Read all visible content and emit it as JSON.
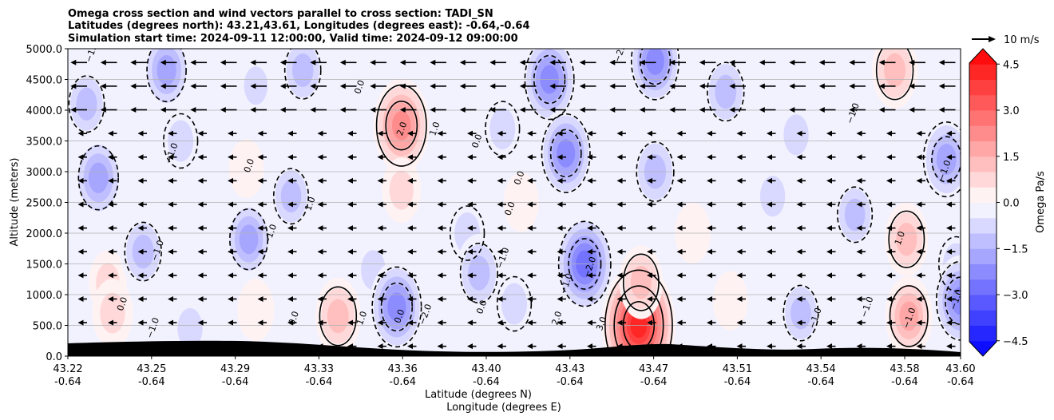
{
  "chart_data": {
    "type": "heatmap",
    "title_lines": [
      "Omega cross section and wind vectors parallel to cross section: TADI_SN",
      "Latitudes (degrees north): 43.21,43.61, Longitudes (degrees east): -0.64,-0.64",
      "Simulation start time: 2024-09-11 12:00:00, Valid time: 2024-09-12 09:00:00"
    ],
    "ylabel": "Altitude (meters)",
    "xlabel_lines": [
      "Latitude (degrees N)",
      "Longitude (degrees E)"
    ],
    "ylim": [
      0,
      5000
    ],
    "y_ticks": [
      "0.0",
      "500.0",
      "1000.0",
      "1500.0",
      "2000.0",
      "2500.0",
      "3000.0",
      "3500.0",
      "4000.0",
      "4500.0",
      "5000.0"
    ],
    "x_ticks": [
      {
        "lat": "43.22",
        "lon": "-0.64"
      },
      {
        "lat": "43.25",
        "lon": "-0.64"
      },
      {
        "lat": "43.29",
        "lon": "-0.64"
      },
      {
        "lat": "43.33",
        "lon": "-0.64"
      },
      {
        "lat": "43.36",
        "lon": "-0.64"
      },
      {
        "lat": "43.40",
        "lon": "-0.64"
      },
      {
        "lat": "43.43",
        "lon": "-0.64"
      },
      {
        "lat": "43.47",
        "lon": "-0.64"
      },
      {
        "lat": "43.51",
        "lon": "-0.64"
      },
      {
        "lat": "43.54",
        "lon": "-0.64"
      },
      {
        "lat": "43.58",
        "lon": "-0.64"
      },
      {
        "lat": "43.60",
        "lon": "-0.64"
      }
    ],
    "grid": "horizontal",
    "colorbar": {
      "label": "Omega Pa/s",
      "range": [
        -5.0,
        5.0
      ],
      "ticks": [
        "4.5",
        "3.0",
        "1.5",
        "0.0",
        "−1.5",
        "−3.0",
        "−4.5"
      ],
      "colors": {
        "negative": "#0000ff",
        "neutral": "#ffffff",
        "positive": "#ff0000"
      }
    },
    "quiver_key": {
      "label": "10 m/s",
      "speed": 10
    },
    "wind": {
      "u_ms": -5.0,
      "rows_per_1000m": 2.6
    },
    "omega_cells": [
      {
        "lat": 43.228,
        "alt": 4100,
        "omega": -1.2
      },
      {
        "lat": 43.233,
        "alt": 2900,
        "omega": -1.9
      },
      {
        "lat": 43.237,
        "alt": 1200,
        "omega": 0.6
      },
      {
        "lat": 43.239,
        "alt": 700,
        "omega": 0.9
      },
      {
        "lat": 43.252,
        "alt": 1700,
        "omega": -1.4
      },
      {
        "lat": 43.262,
        "alt": 4650,
        "omega": -1.8
      },
      {
        "lat": 43.268,
        "alt": 3500,
        "omega": -1.0
      },
      {
        "lat": 43.272,
        "alt": 450,
        "omega": -0.9
      },
      {
        "lat": 43.296,
        "alt": 3050,
        "omega": 0.3
      },
      {
        "lat": 43.297,
        "alt": 1900,
        "omega": -1.6
      },
      {
        "lat": 43.3,
        "alt": 4400,
        "omega": -0.6
      },
      {
        "lat": 43.3,
        "alt": 750,
        "omega": 0.5
      },
      {
        "lat": 43.315,
        "alt": 2600,
        "omega": -1.1
      },
      {
        "lat": 43.32,
        "alt": 4650,
        "omega": -1.3
      },
      {
        "lat": 43.335,
        "alt": 650,
        "omega": 1.4
      },
      {
        "lat": 43.35,
        "alt": 1400,
        "omega": -0.8
      },
      {
        "lat": 43.362,
        "alt": 3750,
        "omega": 2.5
      },
      {
        "lat": 43.362,
        "alt": 2700,
        "omega": 0.7
      },
      {
        "lat": 43.36,
        "alt": 800,
        "omega": -2.4
      },
      {
        "lat": 43.375,
        "alt": 4700,
        "omega": -0.3
      },
      {
        "lat": 43.39,
        "alt": 2000,
        "omega": -1.0
      },
      {
        "lat": 43.395,
        "alt": 1350,
        "omega": -1.5
      },
      {
        "lat": 43.398,
        "alt": 300,
        "omega": -0.5
      },
      {
        "lat": 43.405,
        "alt": 3700,
        "omega": -1.0
      },
      {
        "lat": 43.413,
        "alt": 2500,
        "omega": 0.3
      },
      {
        "lat": 43.41,
        "alt": 850,
        "omega": -1.0
      },
      {
        "lat": 43.425,
        "alt": 4500,
        "omega": -2.4
      },
      {
        "lat": 43.432,
        "alt": 3300,
        "omega": -2.3
      },
      {
        "lat": 43.44,
        "alt": 1500,
        "omega": -2.8
      },
      {
        "lat": 43.463,
        "alt": 500,
        "omega": 4.3
      },
      {
        "lat": 43.464,
        "alt": 1200,
        "omega": 1.2
      },
      {
        "lat": 43.47,
        "alt": 3000,
        "omega": -1.5
      },
      {
        "lat": 43.47,
        "alt": 4800,
        "omega": -2.2
      },
      {
        "lat": 43.486,
        "alt": 2000,
        "omega": 0.4
      },
      {
        "lat": 43.5,
        "alt": 4300,
        "omega": -1.4
      },
      {
        "lat": 43.502,
        "alt": 900,
        "omega": 0.3
      },
      {
        "lat": 43.52,
        "alt": 2600,
        "omega": -0.9
      },
      {
        "lat": 43.53,
        "alt": 3600,
        "omega": -0.9
      },
      {
        "lat": 43.532,
        "alt": 700,
        "omega": -1.1
      },
      {
        "lat": 43.555,
        "alt": 2300,
        "omega": -1.1
      },
      {
        "lat": 43.572,
        "alt": 4650,
        "omega": 1.4
      },
      {
        "lat": 43.577,
        "alt": 1900,
        "omega": 1.2
      },
      {
        "lat": 43.578,
        "alt": 650,
        "omega": 1.6
      },
      {
        "lat": 43.594,
        "alt": 3200,
        "omega": -2.0
      },
      {
        "lat": 43.598,
        "alt": 1500,
        "omega": -1.0
      },
      {
        "lat": 43.6,
        "alt": 900,
        "omega": -2.3
      }
    ],
    "contour_labels": [
      {
        "text": "0.0",
        "lat": 43.344,
        "alt": 4380
      },
      {
        "text": "2.0",
        "lat": 43.362,
        "alt": 3700
      },
      {
        "text": "1.0",
        "lat": 43.376,
        "alt": 3700
      },
      {
        "text": "0.0",
        "lat": 43.394,
        "alt": 3500
      },
      {
        "text": "0.0",
        "lat": 43.412,
        "alt": 2900
      },
      {
        "text": "0.0",
        "lat": 43.408,
        "alt": 2400
      },
      {
        "text": "−1.0",
        "lat": 43.23,
        "alt": 4950
      },
      {
        "text": "−1.0",
        "lat": 43.264,
        "alt": 3300
      },
      {
        "text": "0.0",
        "lat": 43.297,
        "alt": 3100
      },
      {
        "text": "1.0",
        "lat": 43.323,
        "alt": 2480
      },
      {
        "text": "−1.0",
        "lat": 43.306,
        "alt": 1980
      },
      {
        "text": "−1.0",
        "lat": 43.258,
        "alt": 1720
      },
      {
        "text": "0.0",
        "lat": 43.243,
        "alt": 850
      },
      {
        "text": "−1.0",
        "lat": 43.256,
        "alt": 460
      },
      {
        "text": "0.0",
        "lat": 43.316,
        "alt": 620
      },
      {
        "text": "1.0",
        "lat": 43.345,
        "alt": 620
      },
      {
        "text": "0.0",
        "lat": 43.361,
        "alt": 650
      },
      {
        "text": "−2.0",
        "lat": 43.372,
        "alt": 680
      },
      {
        "text": "0.0",
        "lat": 43.396,
        "alt": 800
      },
      {
        "text": "−1.0",
        "lat": 43.405,
        "alt": 1600
      },
      {
        "text": "−1.0",
        "lat": 43.432,
        "alt": 1180
      },
      {
        "text": "−2.0",
        "lat": 43.442,
        "alt": 1450
      },
      {
        "text": "2.0",
        "lat": 43.428,
        "alt": 620
      },
      {
        "text": "3.0",
        "lat": 43.447,
        "alt": 530
      },
      {
        "text": "−2.0",
        "lat": 43.455,
        "alt": 4950
      },
      {
        "text": "−1.0",
        "lat": 43.554,
        "alt": 3950
      },
      {
        "text": "−1.0",
        "lat": 43.538,
        "alt": 620
      },
      {
        "text": "−1.0",
        "lat": 43.56,
        "alt": 800
      },
      {
        "text": "−1.0",
        "lat": 43.578,
        "alt": 620
      },
      {
        "text": "1.0",
        "lat": 43.574,
        "alt": 1920
      },
      {
        "text": "−1.0",
        "lat": 43.593,
        "alt": 3020
      },
      {
        "text": "−1.0",
        "lat": 43.598,
        "alt": 920
      }
    ]
  }
}
